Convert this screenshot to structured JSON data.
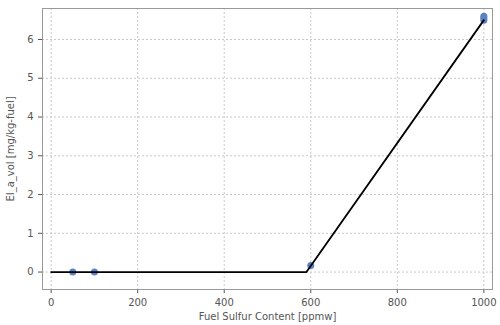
{
  "chart_data": {
    "type": "scatter",
    "x_label": "Fuel Sulfur Content [ppmw]",
    "y_label": "EI_a_vol [mg/kg-fuel]",
    "series": [
      {
        "type": "scatter",
        "color": "#5b82c2",
        "marker": "circle",
        "x": [
          50,
          100,
          600,
          1000,
          1000,
          1000
        ],
        "values": [
          0,
          0,
          0.17,
          6.5,
          6.6,
          6.55
        ]
      },
      {
        "type": "line",
        "color": "#000000",
        "line_style": "solid",
        "x": [
          0,
          590,
          1000
        ],
        "values": [
          0,
          0,
          6.5
        ]
      }
    ],
    "xlim": [
      -20,
      1020
    ],
    "ylim": [
      -0.45,
      6.8
    ],
    "xticks": [
      0,
      200,
      400,
      600,
      800,
      1000
    ],
    "yticks": [
      0,
      1,
      2,
      3,
      4,
      5,
      6
    ],
    "grid": true
  }
}
